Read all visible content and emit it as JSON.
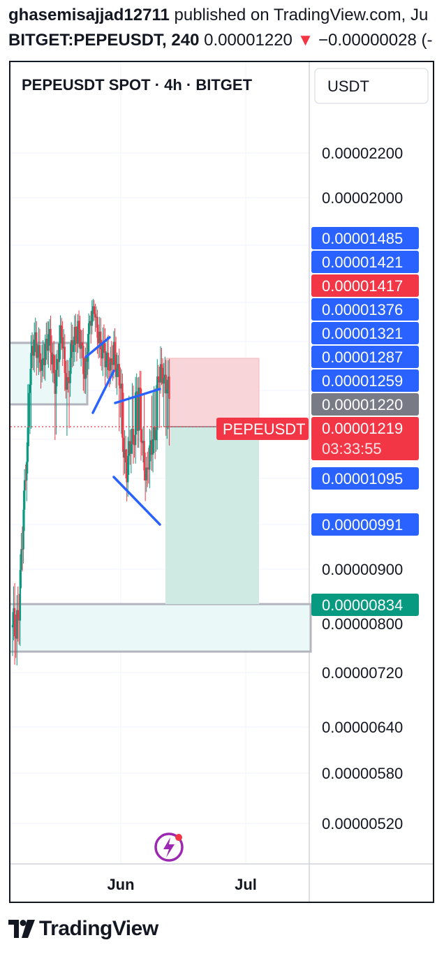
{
  "header": {
    "author": "ghasemisajjad12711",
    "published_text": "published on TradingView.com, Ju",
    "symbol": "BITGET:PEPEUSDT, 240",
    "price": "0.00001220",
    "change_arrow": "▼",
    "change": "−0.00000028 (-"
  },
  "chart": {
    "legend_title": "PEPEUSDT SPOT · 4h · BITGET",
    "currency_button": "USDT",
    "symbol_tag": "PEPEUSDT",
    "countdown": "03:33:55",
    "x_ticks": [
      "Jun",
      "Jul"
    ],
    "colors": {
      "up": "#089981",
      "down": "#f23645",
      "blue_tag": "#2962ff",
      "gray_tag": "#787b86",
      "red_tag": "#f23645",
      "green_tag": "#089981",
      "stop_zone": "#f8d5d8",
      "target_zone": "#cfe9e3",
      "zone_fill": "#eaf8f8",
      "pattern_lines": "#2962ff"
    }
  },
  "chart_data": {
    "type": "candlestick",
    "title": "PEPEUSDT SPOT · 4h · BITGET",
    "y_ticks": [
      "0.00002200",
      "0.00002000",
      "0.00000900",
      "0.00000800",
      "0.00000720",
      "0.00000640",
      "0.00000580",
      "0.00000520"
    ],
    "y_tick_values": [
      2.2e-05,
      2e-05,
      9e-06,
      8e-06,
      7.2e-06,
      6.4e-06,
      5.8e-06,
      5.2e-06
    ],
    "x_ticks": [
      "Jun",
      "Jul"
    ],
    "price_tags": [
      {
        "label": "0.00001485",
        "value": 1.485e-05,
        "kind": "blue"
      },
      {
        "label": "0.00001421",
        "value": 1.421e-05,
        "kind": "blue"
      },
      {
        "label": "0.00001417",
        "value": 1.417e-05,
        "kind": "red"
      },
      {
        "label": "0.00001376",
        "value": 1.376e-05,
        "kind": "blue"
      },
      {
        "label": "0.00001321",
        "value": 1.321e-05,
        "kind": "blue"
      },
      {
        "label": "0.00001287",
        "value": 1.287e-05,
        "kind": "blue"
      },
      {
        "label": "0.00001259",
        "value": 1.259e-05,
        "kind": "blue"
      },
      {
        "label": "0.00001220",
        "value": 1.22e-05,
        "kind": "gray"
      },
      {
        "label": "0.00001219",
        "value": 1.219e-05,
        "kind": "last"
      },
      {
        "label": "0.00001095",
        "value": 1.095e-05,
        "kind": "blue"
      },
      {
        "label": "0.00000991",
        "value": 9.91e-06,
        "kind": "blue"
      },
      {
        "label": "0.00000834",
        "value": 8.34e-06,
        "kind": "green"
      }
    ],
    "current_price": 1.219e-05,
    "position": {
      "entry": 1.22e-05,
      "stop": 1.417e-05,
      "target": 8.34e-06,
      "direction": "short"
    },
    "zones": [
      {
        "top": 1.41e-05,
        "bottom": 1.24e-05,
        "name": "resistance-zone"
      },
      {
        "top": 8.5e-06,
        "bottom": 7.7e-06,
        "name": "support-zone"
      }
    ],
    "series_approx": [
      7.8e-06,
      8e-06,
      8.4e-06,
      9.5e-06,
      1.12e-05,
      1.25e-05,
      1.33e-05,
      1.38e-05,
      1.34e-05,
      1.28e-05,
      1.36e-05,
      1.4e-05,
      1.31e-05,
      1.27e-05,
      1.35e-05,
      1.38e-05,
      1.3e-05,
      1.26e-05,
      1.33e-05,
      1.39e-05,
      1.41e-05,
      1.34e-05,
      1.29e-05,
      1.37e-05,
      1.42e-05,
      1.49e-05,
      1.4e-05,
      1.33e-05,
      1.36e-05,
      1.32e-05,
      1.28e-05,
      1.36e-05,
      1.3e-05,
      1.24e-05,
      1.18e-05,
      1.12e-05,
      1.16e-05,
      1.2e-05,
      1.24e-05,
      1.21e-05,
      1.17e-05,
      1.1e-05,
      1.14e-05,
      1.2e-05,
      1.23e-05,
      1.27e-05,
      1.3e-05,
      1.26e-05,
      1.22e-05
    ]
  }
}
